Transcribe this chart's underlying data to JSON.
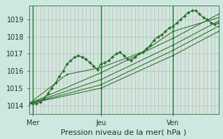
{
  "bg_color": "#cce8e0",
  "grid_color_h": "#aacfaa",
  "grid_color_v": "#e8a0a0",
  "line_color": "#2d6e2d",
  "vline_color": "#2d6e2d",
  "xlabel": "Pression niveau de la mer( hPa )",
  "xlabel_fontsize": 8,
  "yticks": [
    1014,
    1015,
    1016,
    1017,
    1018,
    1019
  ],
  "ylim": [
    1013.5,
    1019.8
  ],
  "xlim": [
    0,
    100
  ],
  "xtick_positions": [
    2,
    38,
    76
  ],
  "xtick_labels": [
    "Mer",
    "Jeu",
    "Ven"
  ],
  "vline_positions": [
    2,
    38,
    76
  ],
  "series0_x": [
    0,
    2,
    4,
    6,
    8,
    10,
    12,
    14,
    16,
    18,
    20,
    22,
    24,
    26,
    28,
    30,
    32,
    34,
    36,
    38,
    40,
    42,
    44,
    46,
    48,
    50,
    52,
    54,
    56,
    58,
    60,
    62,
    64,
    66,
    68,
    70,
    72,
    74,
    76,
    78,
    80,
    82,
    84,
    86,
    88,
    90,
    92,
    94,
    96,
    98,
    100
  ],
  "series0_y": [
    1014.1,
    1014.1,
    1014.1,
    1014.2,
    1014.4,
    1014.7,
    1015.0,
    1015.3,
    1015.7,
    1016.0,
    1016.4,
    1016.6,
    1016.8,
    1016.9,
    1016.8,
    1016.7,
    1016.5,
    1016.3,
    1016.1,
    1016.4,
    1016.5,
    1016.6,
    1016.8,
    1017.0,
    1017.1,
    1016.9,
    1016.7,
    1016.6,
    1016.8,
    1017.0,
    1017.1,
    1017.3,
    1017.5,
    1017.8,
    1018.0,
    1018.1,
    1018.3,
    1018.5,
    1018.6,
    1018.8,
    1019.0,
    1019.2,
    1019.4,
    1019.5,
    1019.5,
    1019.3,
    1019.1,
    1019.0,
    1018.8,
    1018.7,
    1018.8
  ],
  "series1_x": [
    0,
    20,
    38,
    60,
    76,
    100
  ],
  "series1_y": [
    1014.1,
    1015.8,
    1016.2,
    1017.1,
    1018.3,
    1019.1
  ],
  "series2_x": [
    0,
    38,
    76,
    100
  ],
  "series2_y": [
    1014.1,
    1015.9,
    1017.9,
    1019.3
  ],
  "series3_x": [
    0,
    38,
    76,
    100
  ],
  "series3_y": [
    1014.1,
    1015.5,
    1017.5,
    1018.9
  ],
  "series4_x": [
    0,
    38,
    76,
    100
  ],
  "series4_y": [
    1014.1,
    1015.2,
    1017.2,
    1018.6
  ],
  "series5_x": [
    0,
    38,
    76,
    100
  ],
  "series5_y": [
    1014.1,
    1015.0,
    1016.9,
    1018.3
  ],
  "marker": "D",
  "markersize": 2.5,
  "linewidth": 0.9
}
